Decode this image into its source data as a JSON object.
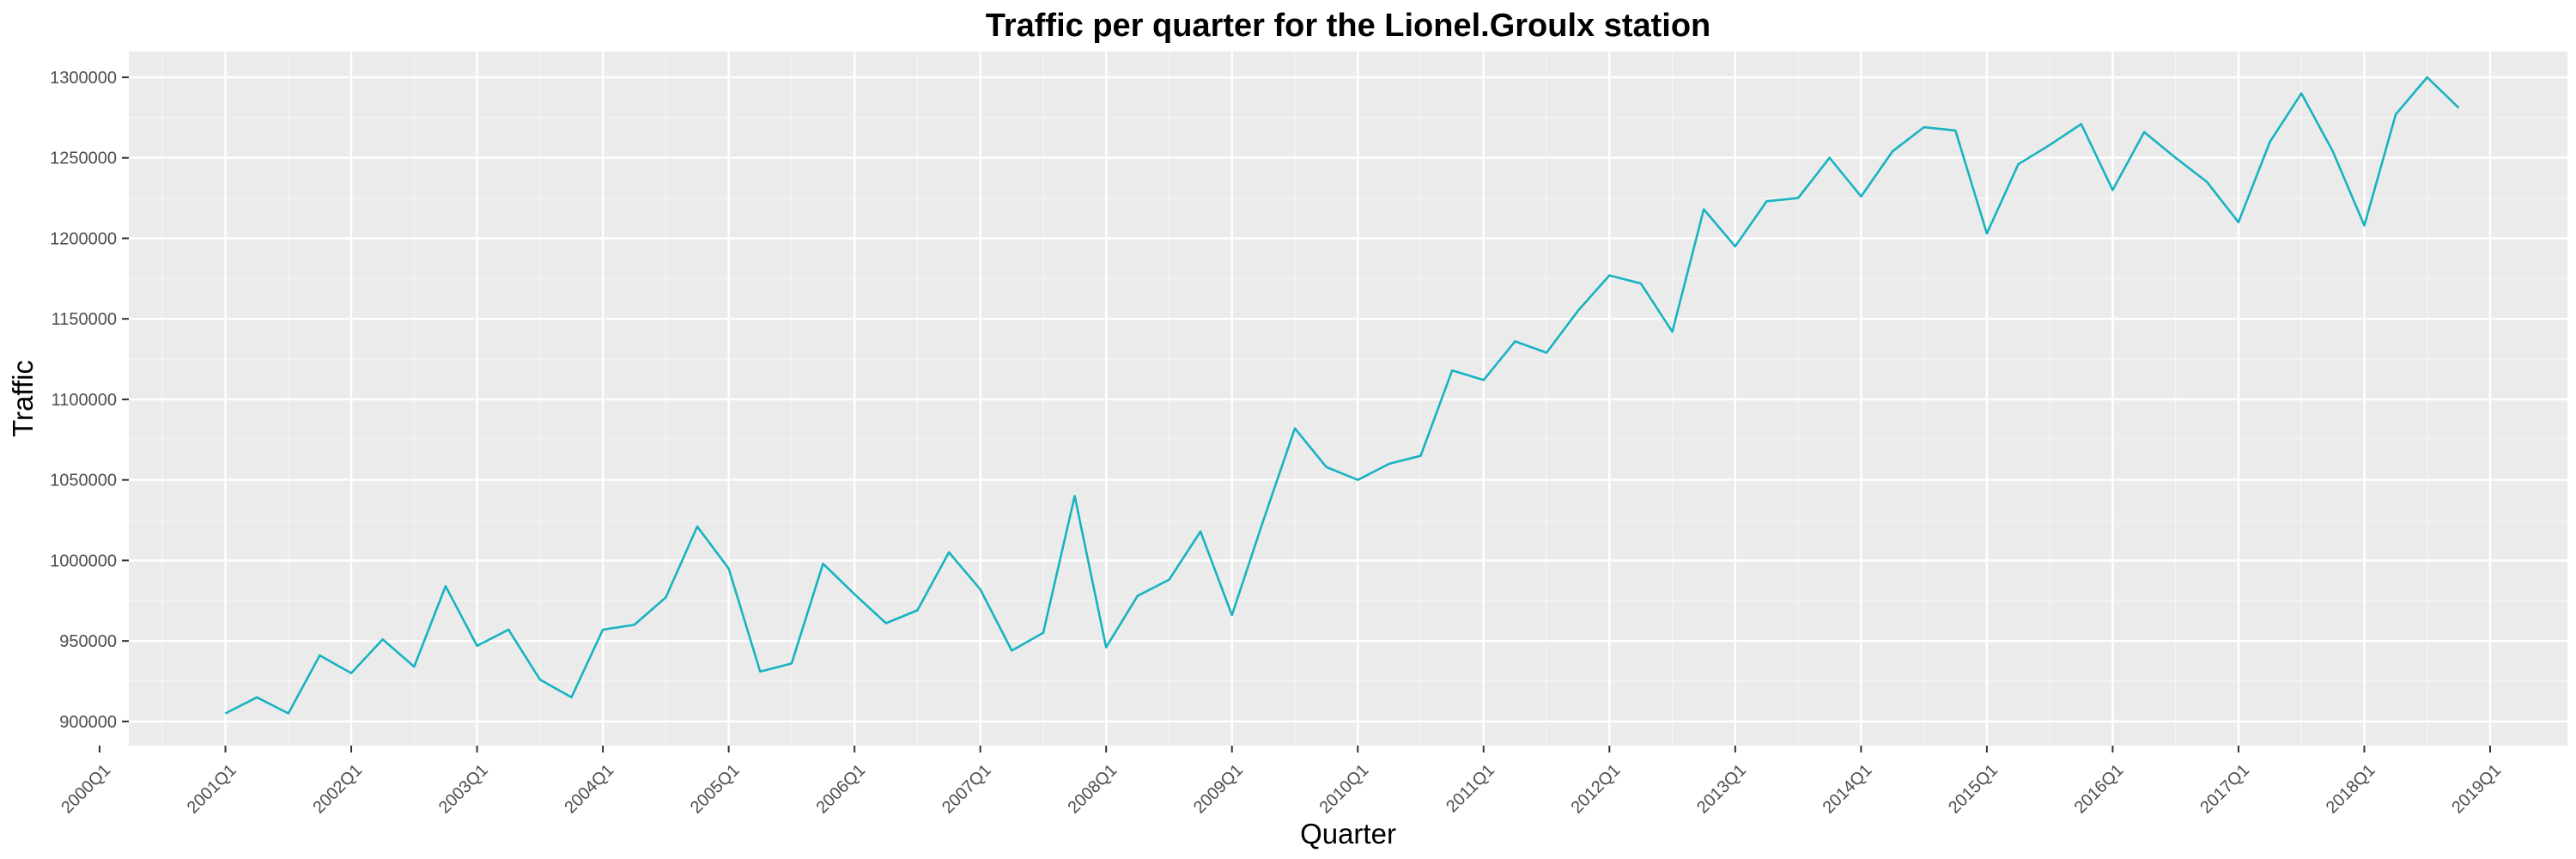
{
  "chart_data": {
    "type": "line",
    "title": "Traffic per quarter for the Lionel.Groulx station",
    "xlabel": "Quarter",
    "ylabel": "Traffic",
    "ylim": [
      885000,
      1316000
    ],
    "yticks": [
      900000,
      950000,
      1000000,
      1050000,
      1100000,
      1150000,
      1200000,
      1250000,
      1300000
    ],
    "ytick_labels": [
      "900000",
      "950000",
      "1000000",
      "1050000",
      "1100000",
      "1150000",
      "1200000",
      "1250000",
      "1300000"
    ],
    "xtick_labels": [
      "2000Q1",
      "2001Q1",
      "2002Q1",
      "2003Q1",
      "2004Q1",
      "2005Q1",
      "2006Q1",
      "2007Q1",
      "2008Q1",
      "2009Q1",
      "2010Q1",
      "2011Q1",
      "2012Q1",
      "2013Q1",
      "2014Q1",
      "2015Q1",
      "2016Q1",
      "2017Q1",
      "2018Q1",
      "2019Q1"
    ],
    "grid": true,
    "line_color": "#17b3c1",
    "panel_color": "#ebebeb",
    "series": [
      {
        "x": [
          "2001Q1",
          "2001Q2",
          "2001Q3",
          "2001Q4",
          "2002Q1",
          "2002Q2",
          "2002Q3",
          "2002Q4",
          "2003Q1",
          "2003Q2",
          "2003Q3",
          "2003Q4",
          "2004Q1",
          "2004Q2",
          "2004Q3",
          "2004Q4",
          "2005Q1",
          "2005Q2",
          "2005Q3",
          "2005Q4",
          "2006Q1",
          "2006Q2",
          "2006Q3",
          "2006Q4",
          "2007Q1",
          "2007Q2",
          "2007Q3",
          "2007Q4",
          "2008Q1",
          "2008Q2",
          "2008Q3",
          "2008Q4",
          "2009Q1",
          "2009Q2",
          "2009Q3",
          "2009Q4",
          "2010Q1",
          "2010Q2",
          "2010Q3",
          "2010Q4",
          "2011Q1",
          "2011Q2",
          "2011Q3",
          "2011Q4",
          "2012Q1",
          "2012Q2",
          "2012Q3",
          "2012Q4",
          "2013Q1",
          "2013Q2",
          "2013Q3",
          "2013Q4",
          "2014Q1",
          "2014Q2",
          "2014Q3",
          "2014Q4",
          "2015Q1",
          "2015Q2",
          "2015Q3",
          "2015Q4",
          "2016Q1",
          "2016Q2",
          "2016Q3",
          "2016Q4",
          "2017Q1",
          "2017Q2",
          "2017Q3",
          "2017Q4",
          "2018Q1",
          "2018Q2",
          "2018Q3",
          "2018Q4"
        ],
        "values": [
          905000,
          915000,
          905000,
          941000,
          930000,
          951000,
          934000,
          984000,
          947000,
          957000,
          926000,
          915000,
          957000,
          960000,
          977000,
          1021000,
          995000,
          931000,
          936000,
          998000,
          979000,
          961000,
          969000,
          1005000,
          982000,
          944000,
          955000,
          1040000,
          946000,
          978000,
          988000,
          1018000,
          966000,
          1025000,
          1082000,
          1058000,
          1050000,
          1060000,
          1065000,
          1118000,
          1112000,
          1136000,
          1129000,
          1155000,
          1177000,
          1172000,
          1142000,
          1218000,
          1195000,
          1223000,
          1225000,
          1250000,
          1226000,
          1254000,
          1269000,
          1267000,
          1203000,
          1246000,
          1258000,
          1271000,
          1230000,
          1266000,
          1250000,
          1235000,
          1210000,
          1260000,
          1290000,
          1254000,
          1208000,
          1277000,
          1300000,
          1281000
        ]
      }
    ]
  }
}
